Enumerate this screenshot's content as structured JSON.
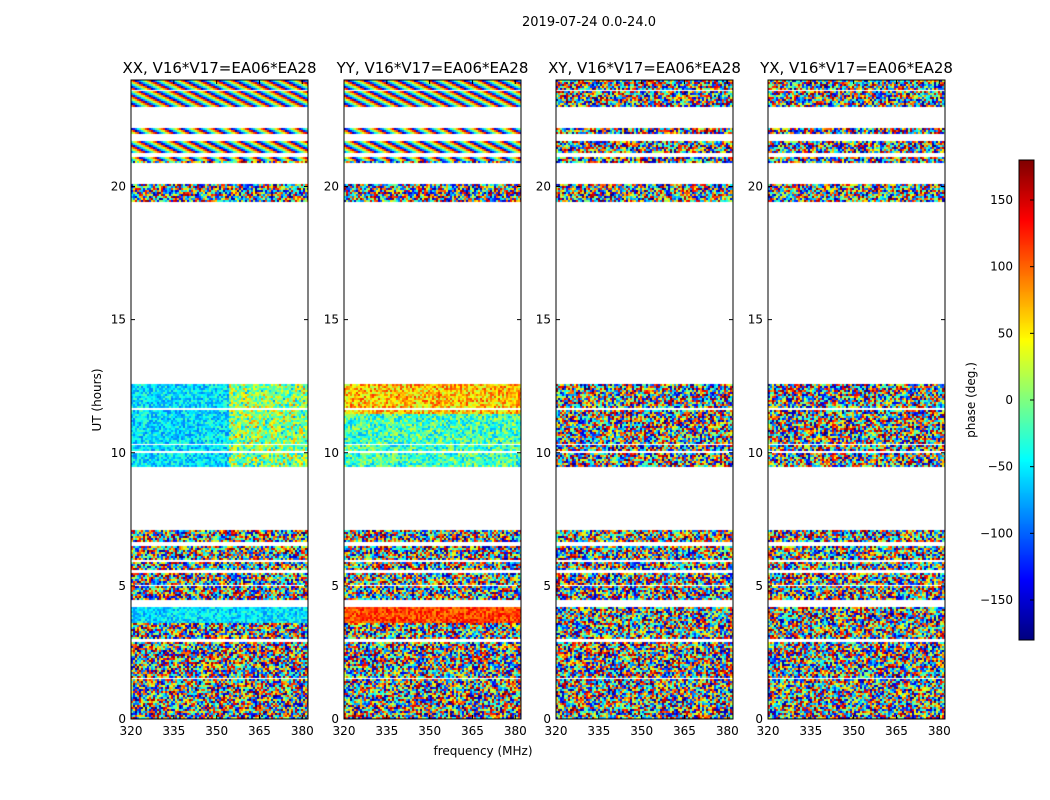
{
  "figure": {
    "suptitle": "2019-07-24 0.0-24.0",
    "xlabel": "frequency (MHz)",
    "ylabel": "UT (hours)",
    "colorbar_label": "phase (deg.)"
  },
  "chart_data": {
    "type": "heatmap",
    "suptitle": "2019-07-24 0.0-24.0",
    "xlabel": "frequency (MHz)",
    "ylabel": "UT (hours)",
    "xlim": [
      320,
      382
    ],
    "ylim": [
      0,
      24
    ],
    "xticks": [
      320,
      335,
      350,
      365,
      380
    ],
    "yticks": [
      0,
      5,
      10,
      15,
      20
    ],
    "colorbar": {
      "label": "phase (deg.)",
      "range": [
        -180,
        180
      ],
      "ticks": [
        -150,
        -100,
        -50,
        0,
        50,
        100,
        150
      ],
      "colormap": "jet"
    },
    "panels": [
      {
        "title": "XX, V16*V17=EA06*EA28",
        "pol": "XX",
        "style": "coherent-blue"
      },
      {
        "title": "YY, V16*V17=EA06*EA28",
        "pol": "YY",
        "style": "coherent-orange"
      },
      {
        "title": "XY, V16*V17=EA06*EA28",
        "pol": "XY",
        "style": "noise"
      },
      {
        "title": "YX, V16*V17=EA06*EA28",
        "pol": "YX",
        "style": "noise"
      }
    ],
    "data_blocks_ut_hours": [
      [
        0,
        1.5
      ],
      [
        1.55,
        2.9
      ],
      [
        3.0,
        3.6
      ],
      [
        3.65,
        4.2
      ],
      [
        4.5,
        5.0
      ],
      [
        5.05,
        5.5
      ],
      [
        5.6,
        5.9
      ],
      [
        6.0,
        6.2
      ],
      [
        6.25,
        6.5
      ],
      [
        6.7,
        7.1
      ],
      [
        9.5,
        10.0
      ],
      [
        10.05,
        10.3
      ],
      [
        10.35,
        11.6
      ],
      [
        11.7,
        12.6
      ],
      [
        19.4,
        20.1
      ],
      [
        20.9,
        21.1
      ],
      [
        21.3,
        21.7
      ],
      [
        22.0,
        22.2
      ],
      [
        23.0,
        23.6
      ],
      [
        23.65,
        24.0
      ]
    ]
  }
}
